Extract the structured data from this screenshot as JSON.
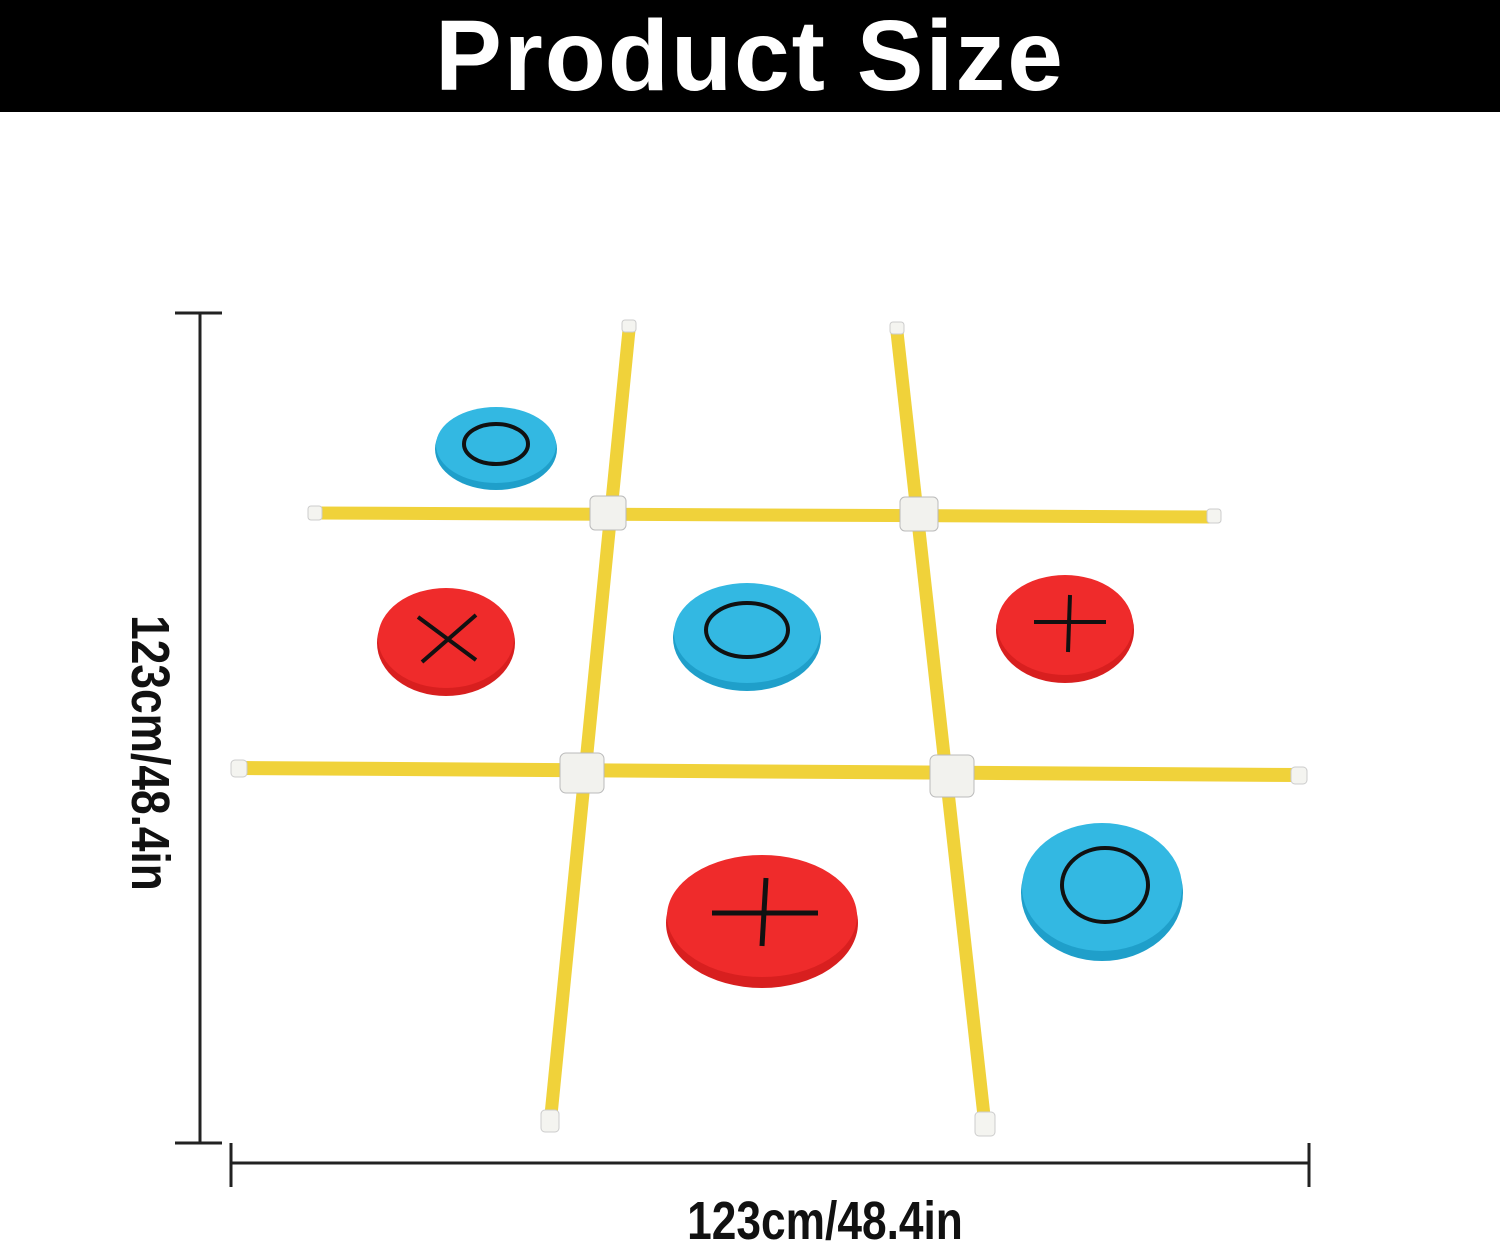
{
  "header": {
    "title": "Product Size"
  },
  "dimensions": {
    "height_label": "123cm/48.4in",
    "width_label": "123cm/48.4in"
  },
  "colors": {
    "pole": "#f0d23a",
    "red_disc": "#ee2a2a",
    "blue_disc": "#2cb3dd",
    "header_bg": "#000000"
  },
  "discs": [
    {
      "color": "blue",
      "mark": "O"
    },
    {
      "color": "red",
      "mark": "X"
    },
    {
      "color": "blue",
      "mark": "O"
    },
    {
      "color": "red",
      "mark": "+"
    },
    {
      "color": "red",
      "mark": "+"
    },
    {
      "color": "blue",
      "mark": "O"
    }
  ]
}
